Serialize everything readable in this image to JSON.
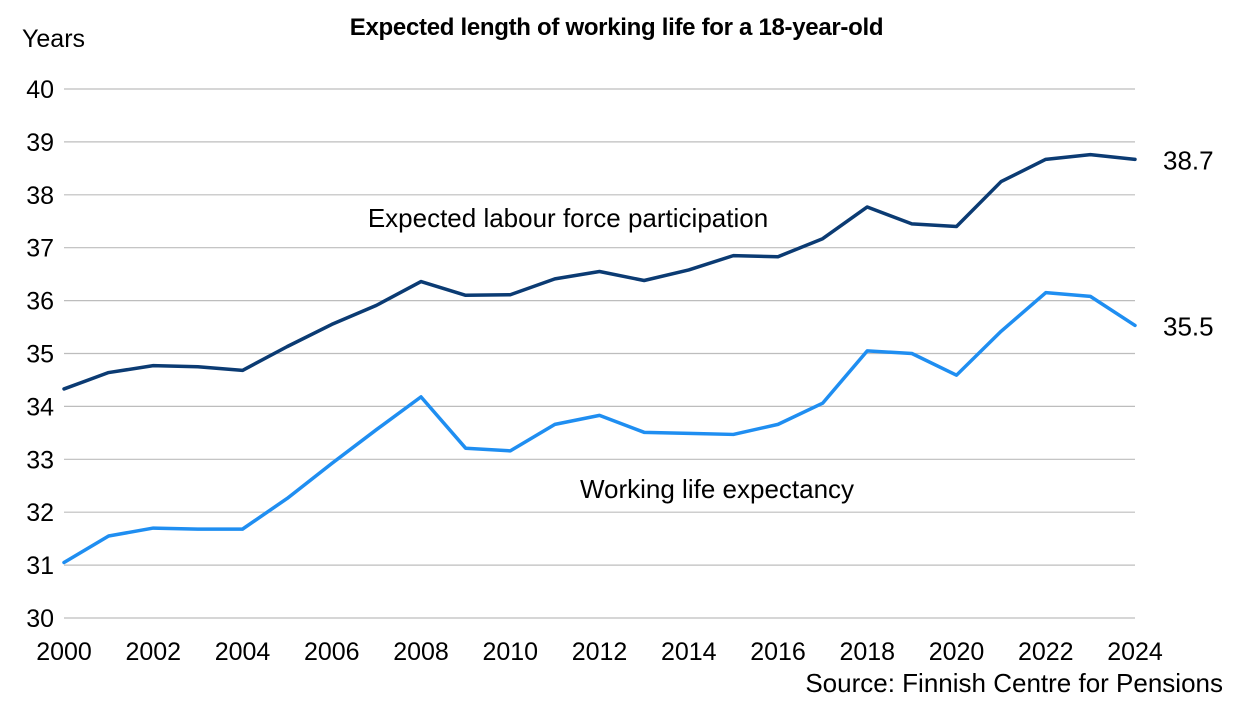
{
  "chart_data": {
    "type": "line",
    "title": "Expected length of working life for a 18-year-old",
    "ylabel": "Years",
    "xlabel": "",
    "source": "Source: Finnish Centre for Pensions",
    "x": [
      2000,
      2001,
      2002,
      2003,
      2004,
      2005,
      2006,
      2007,
      2008,
      2009,
      2010,
      2011,
      2012,
      2013,
      2014,
      2015,
      2016,
      2017,
      2018,
      2019,
      2020,
      2021,
      2022,
      2023,
      2024
    ],
    "x_ticks": [
      "2000",
      "2002",
      "2004",
      "2006",
      "2008",
      "2010",
      "2012",
      "2014",
      "2016",
      "2018",
      "2020",
      "2022",
      "2024"
    ],
    "y_ticks": [
      "30",
      "31",
      "32",
      "33",
      "34",
      "35",
      "36",
      "37",
      "38",
      "39",
      "40"
    ],
    "xlim": [
      2000,
      2024
    ],
    "ylim": [
      30,
      40
    ],
    "grid": "horizontal",
    "legend": "none",
    "series": [
      {
        "name": "Expected labour force participation",
        "color": "#0b3b73",
        "values": [
          34.33,
          34.64,
          34.77,
          34.75,
          34.68,
          35.13,
          35.55,
          35.91,
          36.36,
          36.1,
          36.11,
          36.41,
          36.55,
          36.38,
          36.58,
          36.85,
          36.83,
          37.17,
          37.77,
          37.45,
          37.4,
          38.25,
          38.67,
          38.76,
          38.67
        ],
        "end_label": "38.7"
      },
      {
        "name": "Working life expectancy",
        "color": "#1f8ef1",
        "values": [
          31.05,
          31.55,
          31.7,
          31.68,
          31.68,
          32.26,
          32.92,
          33.56,
          34.18,
          33.21,
          33.16,
          33.66,
          33.83,
          33.51,
          33.49,
          33.47,
          33.66,
          34.06,
          35.05,
          35.0,
          34.59,
          35.42,
          36.15,
          36.08,
          35.53
        ],
        "end_label": "35.5"
      }
    ]
  }
}
